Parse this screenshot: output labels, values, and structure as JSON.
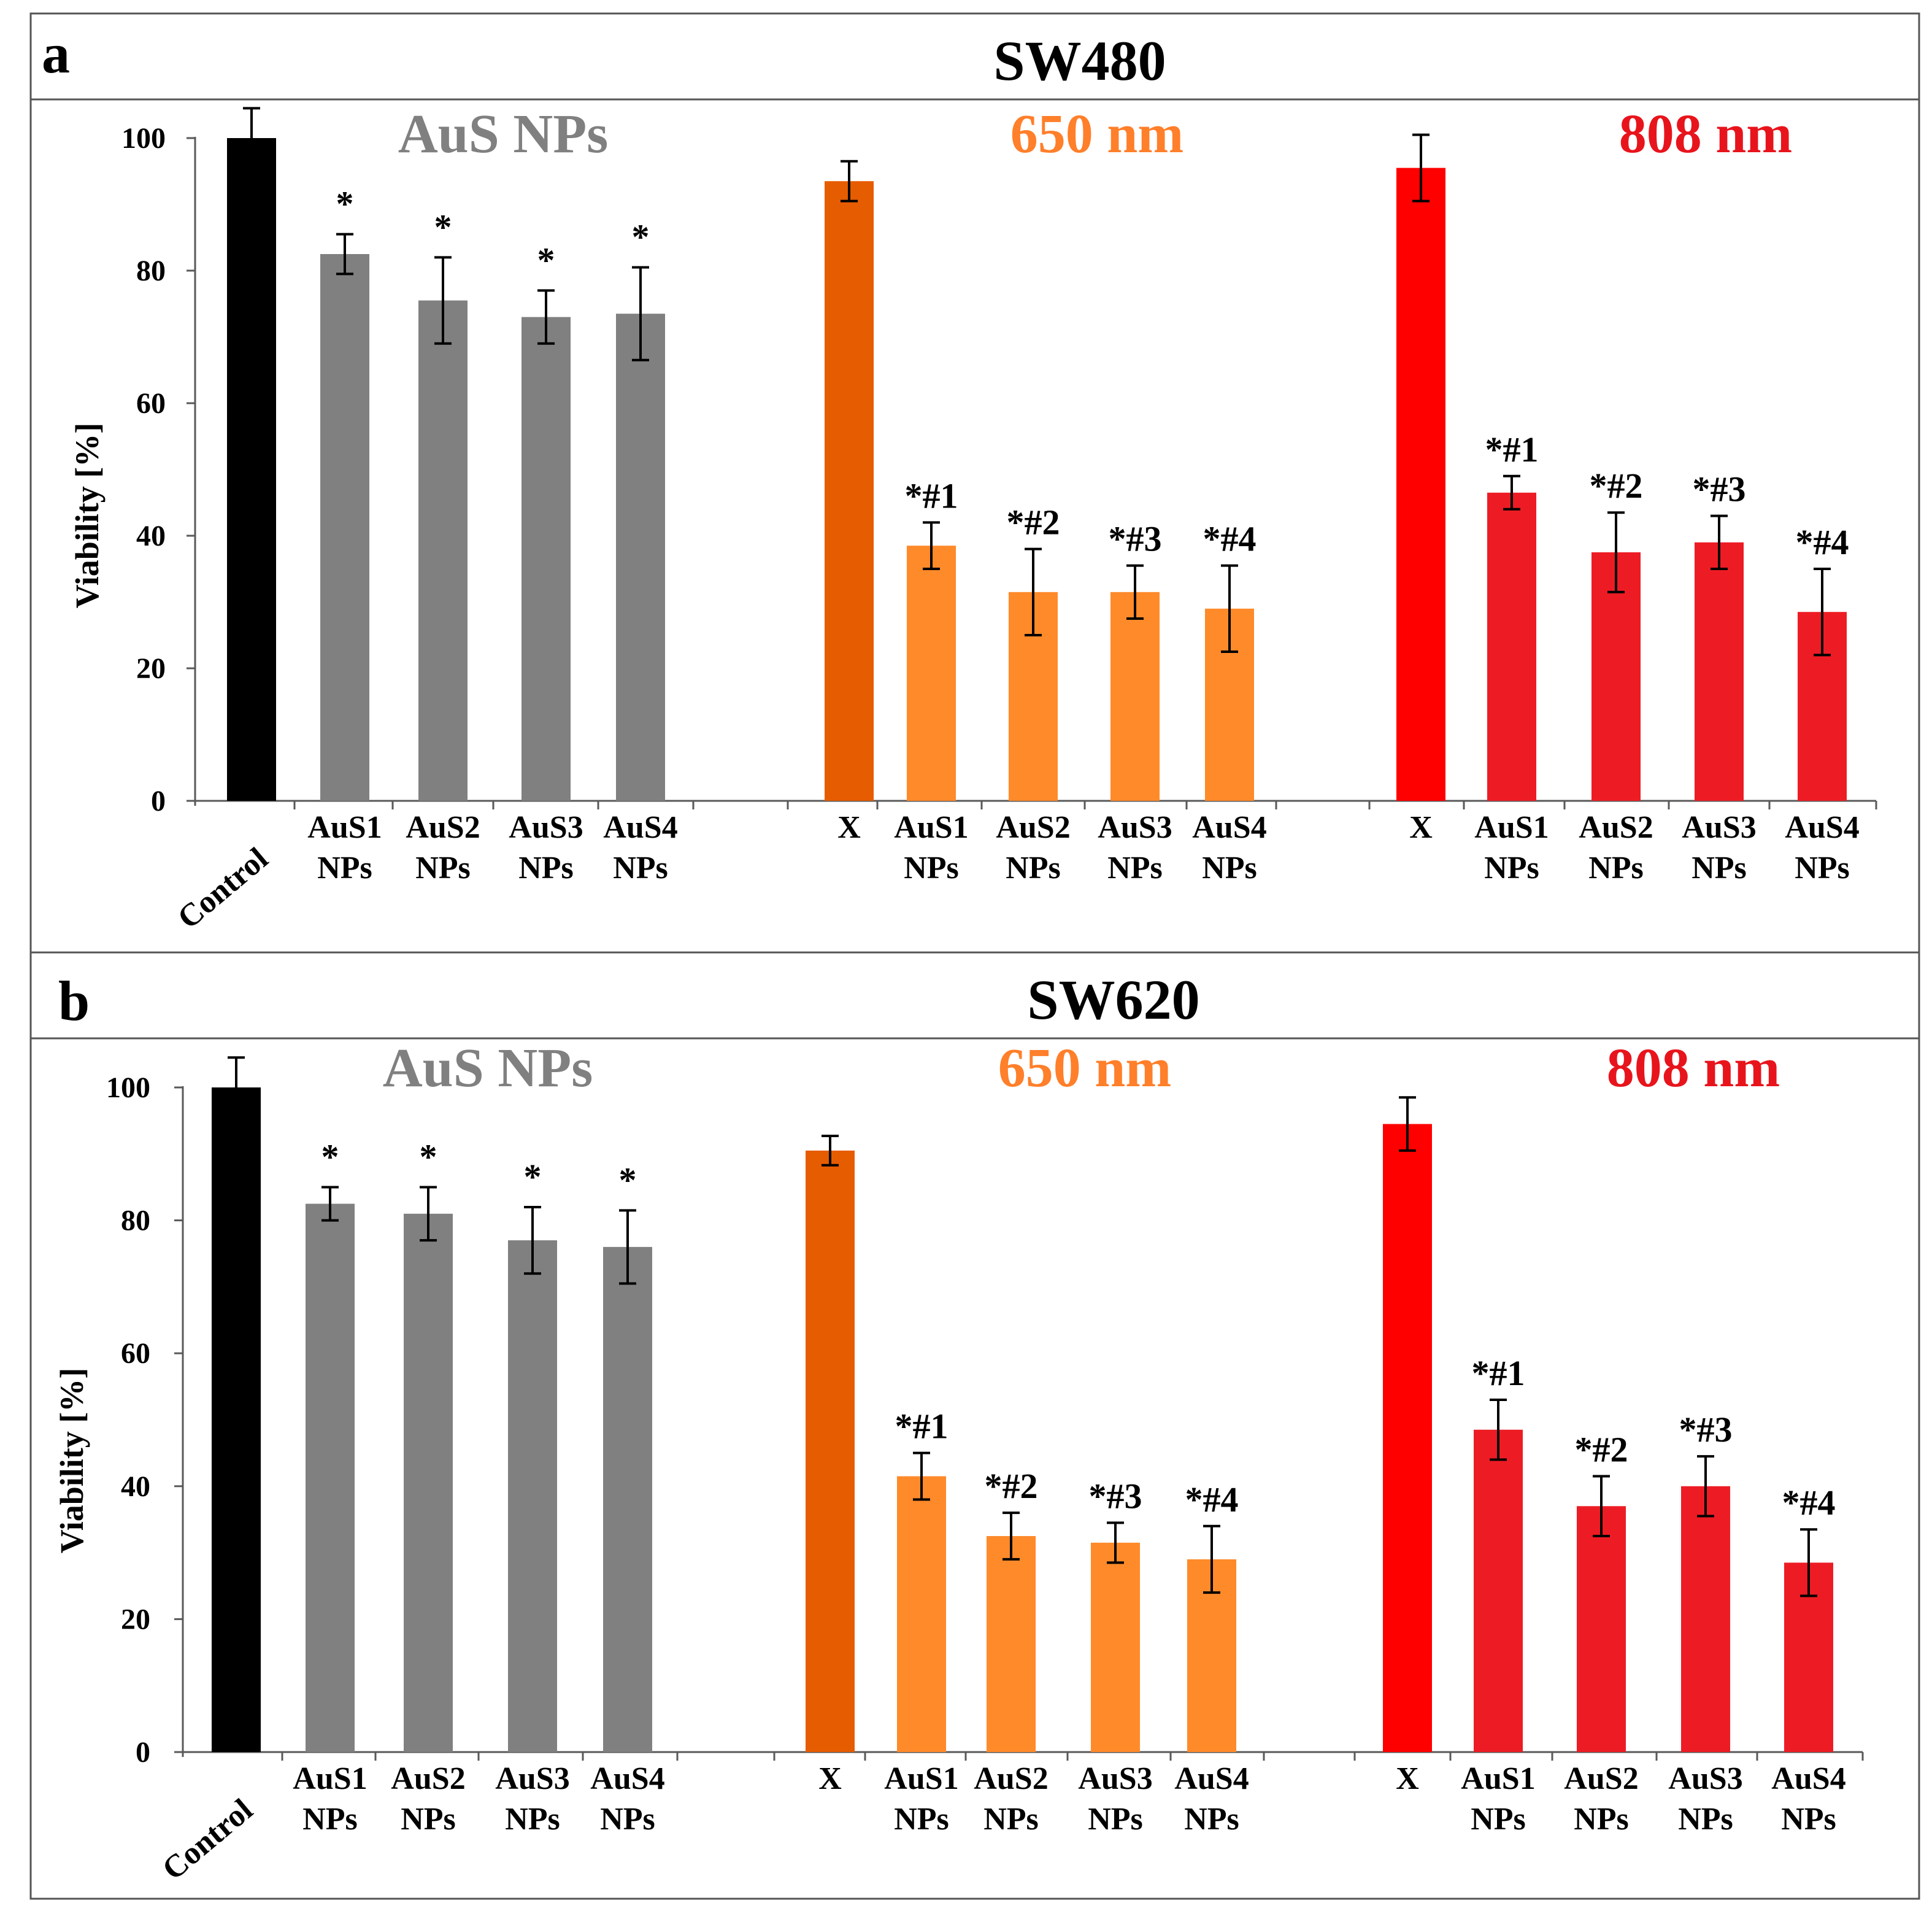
{
  "chart_data": [
    {
      "type": "bar",
      "panel": "a",
      "title": "SW480",
      "ylabel": "Viability [%]",
      "ylim": [
        0,
        100
      ],
      "yticks": [
        0,
        20,
        40,
        60,
        80,
        100
      ],
      "group_titles": [
        {
          "text": "AuS NPs",
          "color": "#808080"
        },
        {
          "text": "650 nm",
          "color": "#FF7F2A"
        },
        {
          "text": "808 nm",
          "color": "#E8141C"
        }
      ],
      "groups": [
        {
          "name": "AuS NPs",
          "bars": [
            {
              "category": "Control",
              "value": 100,
              "error": 4.5,
              "color": "#000000",
              "sig": ""
            },
            {
              "category": "AuS1 NPs",
              "value": 82.5,
              "error": 3,
              "color": "#808080",
              "sig": "*"
            },
            {
              "category": "AuS2 NPs",
              "value": 75.5,
              "error": 6.5,
              "color": "#808080",
              "sig": "*"
            },
            {
              "category": "AuS3 NPs",
              "value": 73,
              "error": 4,
              "color": "#808080",
              "sig": "*"
            },
            {
              "category": "AuS4 NPs",
              "value": 73.5,
              "error": 7,
              "color": "#808080",
              "sig": "*"
            }
          ]
        },
        {
          "name": "650 nm",
          "bars": [
            {
              "category": "X",
              "value": 93.5,
              "error": 3,
              "color": "#E65C00",
              "sig": ""
            },
            {
              "category": "AuS1 NPs",
              "value": 38.5,
              "error": 3.5,
              "color": "#FF8A2A",
              "sig": "*#1"
            },
            {
              "category": "AuS2 NPs",
              "value": 31.5,
              "error": 6.5,
              "color": "#FF8A2A",
              "sig": "*#2"
            },
            {
              "category": "AuS3 NPs",
              "value": 31.5,
              "error": 4,
              "color": "#FF8A2A",
              "sig": "*#3"
            },
            {
              "category": "AuS4 NPs",
              "value": 29,
              "error": 6.5,
              "color": "#FF8A2A",
              "sig": "*#4"
            }
          ]
        },
        {
          "name": "808 nm",
          "bars": [
            {
              "category": "X",
              "value": 95.5,
              "error": 5,
              "color": "#FF0000",
              "sig": ""
            },
            {
              "category": "AuS1 NPs",
              "value": 46.5,
              "error": 2.5,
              "color": "#ED1C24",
              "sig": "*#1"
            },
            {
              "category": "AuS2 NPs",
              "value": 37.5,
              "error": 6,
              "color": "#ED1C24",
              "sig": "*#2"
            },
            {
              "category": "AuS3 NPs",
              "value": 39,
              "error": 4,
              "color": "#ED1C24",
              "sig": "*#3"
            },
            {
              "category": "AuS4 NPs",
              "value": 28.5,
              "error": 6.5,
              "color": "#ED1C24",
              "sig": "*#4"
            }
          ]
        }
      ]
    },
    {
      "type": "bar",
      "panel": "b",
      "title": "SW620",
      "ylabel": "Viability [%]",
      "ylim": [
        0,
        100
      ],
      "yticks": [
        0,
        20,
        40,
        60,
        80,
        100
      ],
      "group_titles": [
        {
          "text": "AuS NPs",
          "color": "#808080"
        },
        {
          "text": "650 nm",
          "color": "#FF7F2A"
        },
        {
          "text": "808 nm",
          "color": "#E8141C"
        }
      ],
      "groups": [
        {
          "name": "AuS NPs",
          "bars": [
            {
              "category": "Control",
              "value": 100,
              "error": 4.5,
              "color": "#000000",
              "sig": ""
            },
            {
              "category": "AuS1 NPs",
              "value": 82.5,
              "error": 2.5,
              "color": "#808080",
              "sig": "*"
            },
            {
              "category": "AuS2 NPs",
              "value": 81,
              "error": 4,
              "color": "#808080",
              "sig": "*"
            },
            {
              "category": "AuS3 NPs",
              "value": 77,
              "error": 5,
              "color": "#808080",
              "sig": "*"
            },
            {
              "category": "AuS4 NPs",
              "value": 76,
              "error": 5.5,
              "color": "#808080",
              "sig": "*"
            }
          ]
        },
        {
          "name": "650 nm",
          "bars": [
            {
              "category": "X",
              "value": 90.5,
              "error": 2.2,
              "color": "#E65C00",
              "sig": ""
            },
            {
              "category": "AuS1 NPs",
              "value": 41.5,
              "error": 3.5,
              "color": "#FF8A2A",
              "sig": "*#1"
            },
            {
              "category": "AuS2 NPs",
              "value": 32.5,
              "error": 3.5,
              "color": "#FF8A2A",
              "sig": "*#2"
            },
            {
              "category": "AuS3 NPs",
              "value": 31.5,
              "error": 3,
              "color": "#FF8A2A",
              "sig": "*#3"
            },
            {
              "category": "AuS4 NPs",
              "value": 29,
              "error": 5,
              "color": "#FF8A2A",
              "sig": "*#4"
            }
          ]
        },
        {
          "name": "808 nm",
          "bars": [
            {
              "category": "X",
              "value": 94.5,
              "error": 4,
              "color": "#FF0000",
              "sig": ""
            },
            {
              "category": "AuS1 NPs",
              "value": 48.5,
              "error": 4.5,
              "color": "#ED1C24",
              "sig": "*#1"
            },
            {
              "category": "AuS2 NPs",
              "value": 37,
              "error": 4.5,
              "color": "#ED1C24",
              "sig": "*#2"
            },
            {
              "category": "AuS3 NPs",
              "value": 40,
              "error": 4.5,
              "color": "#ED1C24",
              "sig": "*#3"
            },
            {
              "category": "AuS4 NPs",
              "value": 28.5,
              "error": 5,
              "color": "#ED1C24",
              "sig": "*#4"
            }
          ]
        }
      ]
    }
  ]
}
